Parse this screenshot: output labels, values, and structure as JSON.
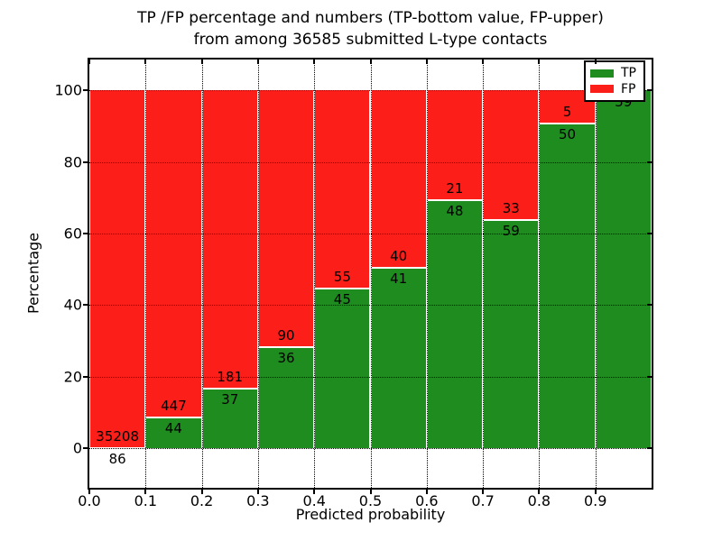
{
  "chart_data": {
    "type": "bar",
    "stacked": true,
    "normalized_to_percent": true,
    "title_lines": [
      "TP /FP percentage and numbers (TP-bottom value, FP-upper)",
      "from among 36585 submitted L-type contacts"
    ],
    "xlabel": "Predicted probability",
    "ylabel": "Percentage",
    "total_contacts": 36585,
    "bin_edges": [
      0.0,
      0.1,
      0.2,
      0.3,
      0.4,
      0.5,
      0.6,
      0.7,
      0.8,
      0.9,
      1.0
    ],
    "x_tick_labels": [
      "0.0",
      "0.1",
      "0.2",
      "0.3",
      "0.4",
      "0.5",
      "0.6",
      "0.7",
      "0.8",
      "0.9"
    ],
    "y_ticks": [
      0,
      20,
      40,
      60,
      80,
      100
    ],
    "y_tick_labels": [
      "0",
      "20",
      "40",
      "60",
      "80",
      "100"
    ],
    "xlim": [
      0,
      1.0
    ],
    "ylim": [
      -11,
      108.6
    ],
    "grid": true,
    "colors": {
      "tp": "#1e8c1e",
      "fp": "#fb1e19",
      "axis": "#000000",
      "background": "#ffffff"
    },
    "legend": {
      "position": "upper right",
      "entries": [
        {
          "label": "TP",
          "color": "#1e8c1e"
        },
        {
          "label": "FP",
          "color": "#fb1e19"
        }
      ]
    },
    "series": [
      {
        "name": "TP",
        "color": "#1e8c1e",
        "values": [
          86,
          44,
          37,
          36,
          45,
          41,
          48,
          59,
          50,
          59
        ]
      },
      {
        "name": "FP",
        "color": "#fb1e19",
        "values": [
          35208,
          447,
          181,
          90,
          55,
          40,
          21,
          33,
          5,
          0
        ]
      }
    ]
  }
}
